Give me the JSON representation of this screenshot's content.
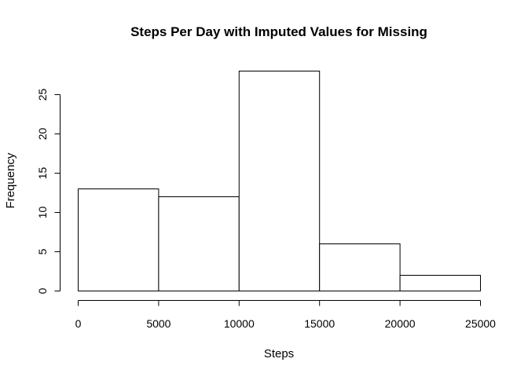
{
  "chart_data": {
    "type": "histogram",
    "title": "Steps Per Day with Imputed Values for Missing",
    "xlabel": "Steps",
    "ylabel": "Frequency",
    "bins": [
      {
        "start": 0,
        "end": 5000,
        "count": 13
      },
      {
        "start": 5000,
        "end": 10000,
        "count": 12
      },
      {
        "start": 10000,
        "end": 15000,
        "count": 28
      },
      {
        "start": 15000,
        "end": 20000,
        "count": 6
      },
      {
        "start": 20000,
        "end": 25000,
        "count": 2
      }
    ],
    "xlim": [
      0,
      25000
    ],
    "ylim": [
      0,
      28
    ],
    "x_ticks": [
      0,
      5000,
      10000,
      15000,
      20000,
      25000
    ],
    "x_tick_labels": [
      "0",
      "5000",
      "10000",
      "15000",
      "20000",
      "25000"
    ],
    "y_ticks": [
      0,
      5,
      10,
      15,
      20,
      25
    ],
    "y_tick_labels": [
      "0",
      "5",
      "10",
      "15",
      "20",
      "25"
    ],
    "bar_fill": "#ffffff",
    "bar_stroke": "#000000",
    "grid": false,
    "legend": "none"
  }
}
